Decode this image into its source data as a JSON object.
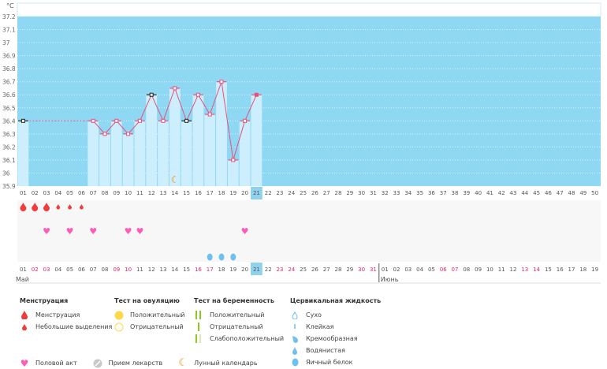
{
  "chart_data": {
    "type": "line",
    "unit_label": "°C",
    "ylim": [
      35.9,
      37.2
    ],
    "yticks": [
      "35.9",
      "36",
      "36.1",
      "36.2",
      "36.3",
      "36.4",
      "36.5",
      "36.6",
      "36.7",
      "36.8",
      "36.9",
      "37",
      "37.1",
      "37.2"
    ],
    "cycle_days": 50,
    "highlight_day": 21,
    "temperatures": [
      {
        "day": 1,
        "t": 36.4,
        "mark": "black"
      },
      {
        "day": 7,
        "t": 36.4
      },
      {
        "day": 8,
        "t": 36.3
      },
      {
        "day": 9,
        "t": 36.4
      },
      {
        "day": 10,
        "t": 36.3
      },
      {
        "day": 11,
        "t": 36.4
      },
      {
        "day": 12,
        "t": 36.6,
        "mark": "black"
      },
      {
        "day": 13,
        "t": 36.4
      },
      {
        "day": 14,
        "t": 36.65
      },
      {
        "day": 15,
        "t": 36.4,
        "mark": "black"
      },
      {
        "day": 16,
        "t": 36.6
      },
      {
        "day": 17,
        "t": 36.45
      },
      {
        "day": 18,
        "t": 36.7
      },
      {
        "day": 19,
        "t": 36.1
      },
      {
        "day": 20,
        "t": 36.4
      },
      {
        "day": 21,
        "t": 36.6,
        "mark": "filled"
      }
    ],
    "interpolated_days": [
      2,
      3,
      4,
      5,
      6
    ],
    "moon_days": [
      14
    ],
    "menstruation_heavy": [
      1,
      2,
      3
    ],
    "menstruation_light": [
      4,
      5,
      6
    ],
    "intercourse": [
      3,
      5,
      7,
      10,
      11,
      20
    ],
    "egg_white": [
      17,
      18,
      19
    ],
    "dates": [
      "01",
      "02",
      "03",
      "04",
      "05",
      "06",
      "07",
      "08",
      "09",
      "10",
      "11",
      "12",
      "13",
      "14",
      "15",
      "16",
      "17",
      "18",
      "19",
      "20",
      "21",
      "22",
      "23",
      "24",
      "25",
      "26",
      "27",
      "28",
      "29",
      "30",
      "31",
      "01",
      "02",
      "03",
      "04",
      "05",
      "06",
      "07",
      "08",
      "09",
      "10",
      "11",
      "12",
      "13",
      "14",
      "15",
      "16",
      "17",
      "18",
      "19"
    ],
    "weekend_indices": [
      1,
      2,
      8,
      9,
      15,
      16,
      22,
      23,
      29,
      30,
      36,
      37,
      43,
      44
    ],
    "months": [
      {
        "label": "Май",
        "start": 0
      },
      {
        "label": "Июнь",
        "start": 31
      }
    ]
  },
  "colors": {
    "chart_bg": "#8fd8f3",
    "bar": "#cdeefc",
    "line": "#e8507a",
    "weekend": "#e8285a",
    "drop": "#f03c3c",
    "heart": "#ff5bb8",
    "egg": "#6ec0ee",
    "moon": "#f0900a",
    "highlight": "#8fd2ee"
  },
  "legend": {
    "menstruation": {
      "title": "Менструация",
      "items": [
        "Менструация",
        "Небольшие выделения"
      ]
    },
    "ovulation": {
      "title": "Тест на овуляцию",
      "items": [
        "Положительный",
        "Отрицательный"
      ]
    },
    "pregnancy": {
      "title": "Тест на беременность",
      "items": [
        "Положительный",
        "Отрицательный",
        "Слабоположительный"
      ]
    },
    "cervical": {
      "title": "Цервикальная жидкость",
      "items": [
        "Сухо",
        "Клейкая",
        "Кремообразная",
        "Водянистая",
        "Яичный белок"
      ]
    },
    "bottom": [
      "Половой акт",
      "Прием лекарств",
      "Лунный календарь"
    ]
  }
}
